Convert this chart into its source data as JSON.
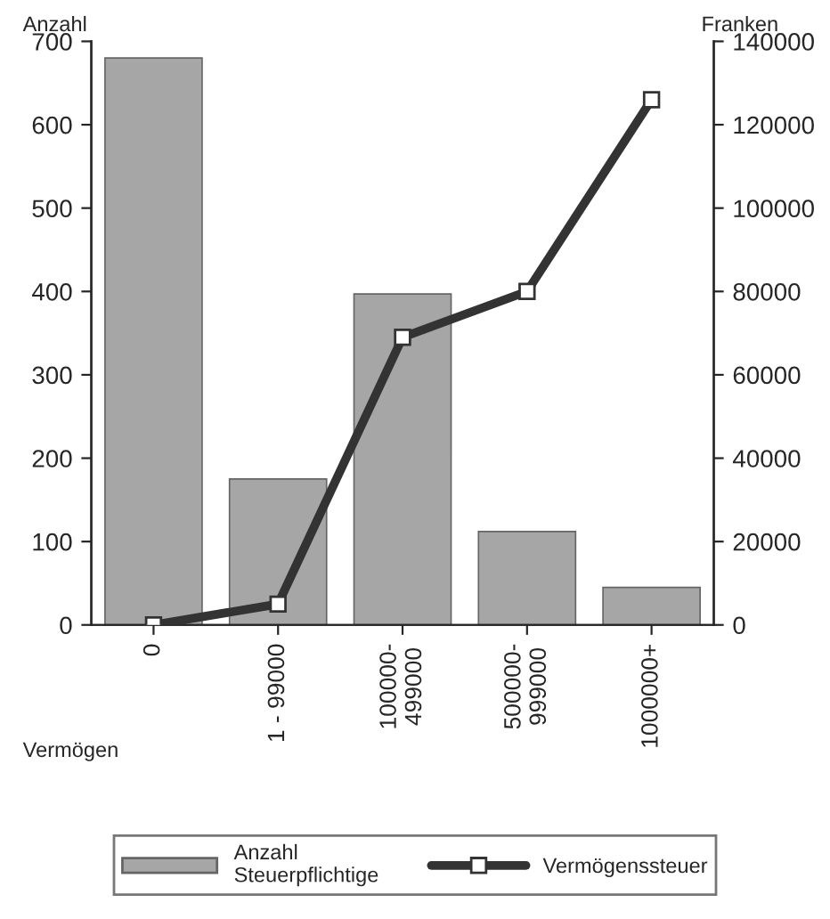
{
  "chart_data": {
    "type": "bar",
    "xlabel": "Vermögen",
    "ylabel": "Anzahl",
    "y2label": "Franken",
    "categories": [
      "0",
      "1 - 99000",
      "100000-\n499000",
      "500000-\n999000",
      "1000000+"
    ],
    "series": [
      {
        "name": "Anzahl\nSteuerpflichtige",
        "color": "#a6a6a6",
        "values": [
          680,
          175,
          397,
          112,
          45
        ]
      },
      {
        "name": "Vermögenssteuer",
        "type": "line",
        "axis": "y2",
        "color": "#333333",
        "marker": "square",
        "values": [
          0,
          5000,
          69000,
          80000,
          126000
        ]
      }
    ],
    "ylim": [
      0,
      700
    ],
    "yticks": [
      0,
      100,
      200,
      300,
      400,
      500,
      600,
      700
    ],
    "y2lim": [
      0,
      140000
    ],
    "y2ticks": [
      0,
      20000,
      40000,
      60000,
      80000,
      100000,
      120000,
      140000
    ],
    "grid": false,
    "legend": "bottom"
  }
}
